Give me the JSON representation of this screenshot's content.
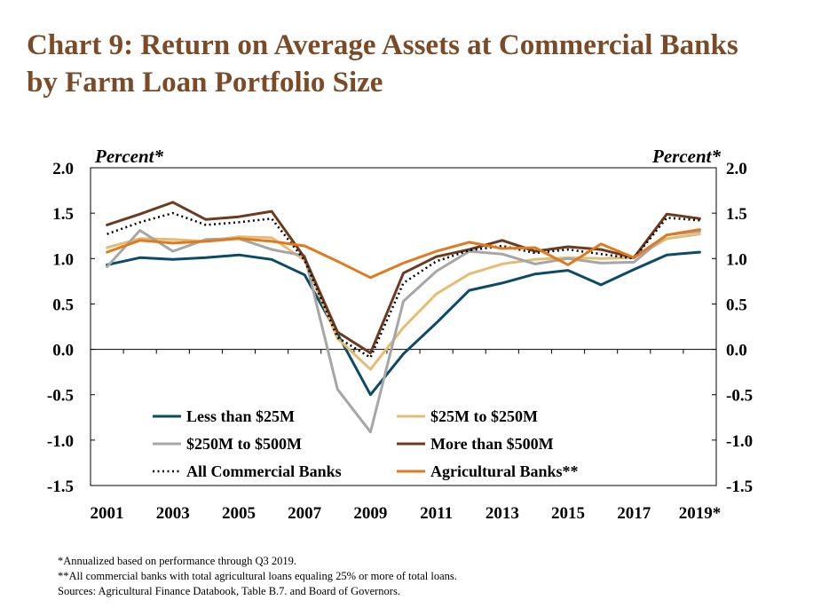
{
  "title": {
    "line1": "Chart 9: Return on Average Assets at Commercial Banks",
    "line2": "by Farm Loan Portfolio Size"
  },
  "footnotes": [
    "*Annualized based on performance through Q3 2019.",
    "**All commercial banks with total agricultural loans equaling 25% or more of total loans.",
    "Sources: Agricultural Finance Databook, Table B.7. and Board of Governors."
  ],
  "chart_data": {
    "type": "line",
    "title": "Chart 9: Return on Average Assets at Commercial Banks by Farm Loan Portfolio Size",
    "ylabel_left": "Percent*",
    "ylabel_right": "Percent*",
    "ylim": [
      -1.5,
      2.0
    ],
    "yticks": [
      "2.0",
      "1.5",
      "1.0",
      "0.5",
      "0.0",
      "-0.5",
      "-1.0",
      "-1.5"
    ],
    "x": [
      "2001",
      "2002",
      "2003",
      "2004",
      "2005",
      "2006",
      "2007",
      "2008",
      "2009",
      "2010",
      "2011",
      "2012",
      "2013",
      "2014",
      "2015",
      "2016",
      "2017",
      "2018",
      "2019*"
    ],
    "xtick_labels": [
      "2001",
      "2003",
      "2005",
      "2007",
      "2009",
      "2011",
      "2013",
      "2015",
      "2017",
      "2019*"
    ],
    "grid": false,
    "legend": "bottom-center",
    "series": [
      {
        "name": "Less than $25M",
        "color": "#0d4a66",
        "style": "solid",
        "values": [
          0.93,
          1.01,
          0.99,
          1.01,
          1.04,
          0.99,
          0.82,
          0.17,
          -0.5,
          -0.05,
          0.29,
          0.65,
          0.73,
          0.83,
          0.87,
          0.71,
          0.88,
          1.04,
          1.07
        ]
      },
      {
        "name": "$25M to $250M",
        "color": "#e3bd74",
        "style": "solid",
        "values": [
          1.12,
          1.22,
          1.21,
          1.19,
          1.24,
          1.23,
          0.98,
          0.12,
          -0.22,
          0.24,
          0.61,
          0.83,
          0.94,
          0.99,
          1.01,
          1.0,
          1.01,
          1.22,
          1.27
        ]
      },
      {
        "name": "$250M to $500M",
        "color": "#a6a6a6",
        "style": "solid",
        "values": [
          0.91,
          1.31,
          1.08,
          1.21,
          1.22,
          1.1,
          1.03,
          -0.44,
          -0.91,
          0.53,
          0.86,
          1.08,
          1.05,
          0.94,
          1.0,
          0.95,
          0.96,
          1.26,
          1.3
        ]
      },
      {
        "name": "More than $500M",
        "color": "#6b3a1f",
        "style": "solid",
        "values": [
          1.37,
          1.49,
          1.62,
          1.43,
          1.46,
          1.52,
          1.01,
          0.19,
          -0.04,
          0.84,
          1.02,
          1.1,
          1.2,
          1.08,
          1.13,
          1.1,
          1.01,
          1.49,
          1.44
        ]
      },
      {
        "name": "All Commercial Banks",
        "color": "#000000",
        "style": "dotted",
        "values": [
          1.27,
          1.4,
          1.5,
          1.37,
          1.4,
          1.44,
          0.98,
          0.13,
          -0.09,
          0.73,
          0.97,
          1.09,
          1.14,
          1.06,
          1.1,
          1.05,
          1.0,
          1.45,
          1.42
        ]
      },
      {
        "name": "Agricultural Banks**",
        "color": "#e07a1f",
        "style": "solid",
        "values": [
          1.07,
          1.2,
          1.17,
          1.19,
          1.22,
          1.19,
          1.14,
          0.97,
          0.79,
          0.95,
          1.08,
          1.18,
          1.11,
          1.12,
          0.93,
          1.16,
          1.01,
          1.26,
          1.32
        ]
      }
    ]
  }
}
